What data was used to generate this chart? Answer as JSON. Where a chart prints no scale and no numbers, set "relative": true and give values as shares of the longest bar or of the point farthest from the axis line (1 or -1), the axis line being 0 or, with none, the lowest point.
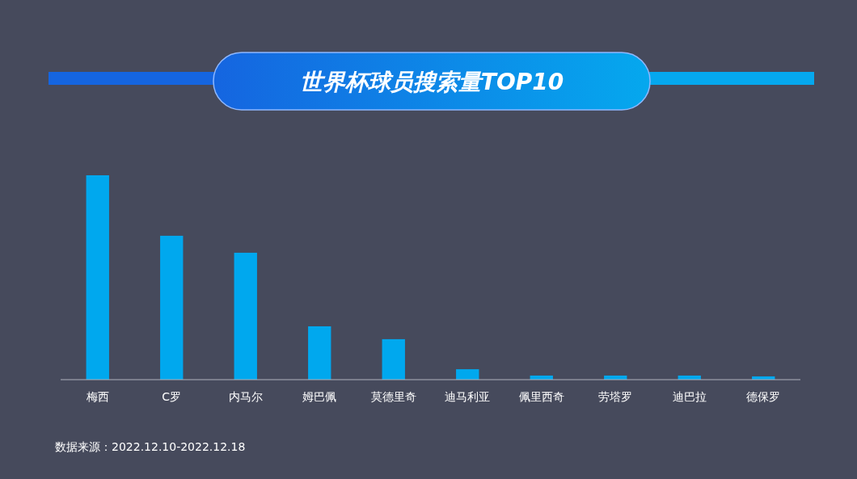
{
  "chart_data": {
    "type": "bar",
    "title": "世界杯球员搜索量TOP10",
    "relative": true,
    "categories": [
      "梅西",
      "C罗",
      "内马尔",
      "姆巴佩",
      "莫德里奇",
      "迪马利亚",
      "佩里西奇",
      "劳塔罗",
      "迪巴拉",
      "德保罗"
    ],
    "values": [
      1,
      0.704,
      0.621,
      0.261,
      0.198,
      0.051,
      0.02,
      0.02,
      0.02,
      0.016
    ],
    "color": "#00a8ee",
    "annotations": [
      "数据来源：2022.12.10-2022.12.18"
    ]
  }
}
